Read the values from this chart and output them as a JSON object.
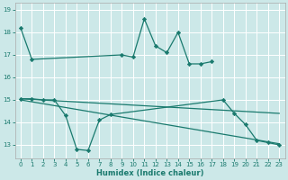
{
  "xlabel": "Humidex (Indice chaleur)",
  "background_color": "#cce8e8",
  "grid_color": "#ffffff",
  "line_color": "#1a7a6e",
  "xlim": [
    -0.5,
    23.5
  ],
  "ylim": [
    12.4,
    19.3
  ],
  "xticks": [
    0,
    1,
    2,
    3,
    4,
    5,
    6,
    7,
    8,
    9,
    10,
    11,
    12,
    13,
    14,
    15,
    16,
    17,
    18,
    19,
    20,
    21,
    22,
    23
  ],
  "yticks": [
    13,
    14,
    15,
    16,
    17,
    18,
    19
  ],
  "upper_x": [
    0,
    1,
    9,
    10,
    11,
    12,
    13,
    14,
    15,
    16,
    17
  ],
  "upper_y": [
    18.2,
    16.8,
    17.0,
    16.9,
    18.6,
    17.4,
    17.1,
    18.0,
    16.6,
    16.6,
    16.7
  ],
  "lower_x": [
    0,
    1,
    2,
    3,
    4,
    5,
    6,
    7,
    8,
    18,
    19,
    20,
    21,
    22,
    23
  ],
  "lower_y": [
    15.05,
    15.05,
    15.0,
    15.0,
    14.3,
    12.8,
    12.75,
    14.1,
    14.35,
    15.0,
    14.4,
    13.9,
    13.2,
    13.1,
    13.0
  ],
  "trend1_x": [
    0,
    23
  ],
  "trend1_y": [
    15.05,
    14.4
  ],
  "trend2_x": [
    0,
    23
  ],
  "trend2_y": [
    15.0,
    13.05
  ]
}
